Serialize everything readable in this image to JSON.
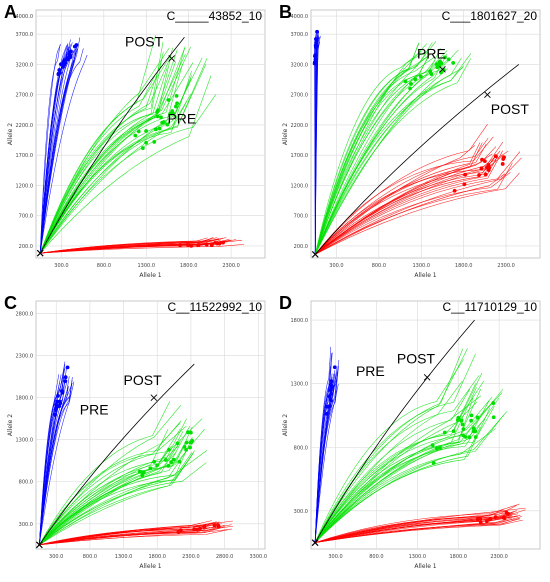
{
  "chart_data": [
    {
      "type": "scatter",
      "panel_letter": "A",
      "title": "C_____43852_10",
      "xlabel": "Allele 1",
      "ylabel": "Allele 2",
      "x_ticks": [
        "300.0",
        "800.0",
        "1300.0",
        "1800.0",
        "2300.0"
      ],
      "y_ticks": [
        "200.0",
        "700.0",
        "1200.0",
        "1700.0",
        "2200.0",
        "2700.0",
        "3200.0",
        "3700.0",
        "4000.0"
      ],
      "xlim": [
        0,
        2700
      ],
      "ylim": [
        0,
        4100
      ],
      "series": [
        {
          "color": "#0000ff",
          "start": [
            50,
            80
          ],
          "end": [
            380,
            3300
          ],
          "n_traces": 24,
          "spread_x": 300,
          "spread_y": 650,
          "tail_x": 40,
          "tail_y": 220,
          "n_dots": 22
        },
        {
          "color": "#00e000",
          "start": [
            50,
            80
          ],
          "end": [
            1500,
            2350
          ],
          "n_traces": 28,
          "spread_x": 700,
          "spread_y": 950,
          "tail_x": 280,
          "tail_y": 900,
          "n_dots": 22
        },
        {
          "color": "#ff0000",
          "start": [
            50,
            80
          ],
          "end": [
            2000,
            230
          ],
          "n_traces": 22,
          "spread_x": 850,
          "spread_y": 90,
          "tail_x": 260,
          "tail_y": 60,
          "n_dots": 14
        }
      ],
      "ntc_line": {
        "color": "#000000",
        "from": [
          50,
          80
        ],
        "to": [
          1750,
          3650
        ]
      },
      "annotations": [
        {
          "text": "POST",
          "at": [
            1600,
            3300
          ],
          "label_at": [
            1050,
            3500
          ],
          "marker": true
        },
        {
          "text": "PRE",
          "at": [
            1520,
            2380
          ],
          "label_at": [
            1550,
            2220
          ],
          "marker": false
        }
      ]
    },
    {
      "type": "scatter",
      "panel_letter": "B",
      "title": "C___1801627_20",
      "xlabel": "Allele 1",
      "ylabel": "Allele 2",
      "x_ticks": [
        "300.0",
        "800.0",
        "1300.0",
        "1800.0",
        "2300.0"
      ],
      "y_ticks": [
        "200.0",
        "700.0",
        "1200.0",
        "1700.0",
        "2200.0",
        "2700.0",
        "3200.0",
        "3700.0",
        "4000.0"
      ],
      "xlim": [
        0,
        2700
      ],
      "ylim": [
        0,
        4100
      ],
      "series": [
        {
          "color": "#0000ff",
          "start": [
            50,
            60
          ],
          "end": [
            60,
            3500
          ],
          "n_traces": 16,
          "spread_x": 40,
          "spread_y": 700,
          "tail_x": 20,
          "tail_y": 200,
          "n_dots": 14
        },
        {
          "color": "#00e000",
          "start": [
            50,
            60
          ],
          "end": [
            1400,
            3050
          ],
          "n_traces": 26,
          "spread_x": 650,
          "spread_y": 550,
          "tail_x": 200,
          "tail_y": 350,
          "n_dots": 20
        },
        {
          "color": "#ff0000",
          "start": [
            50,
            60
          ],
          "end": [
            2000,
            1450
          ],
          "n_traces": 24,
          "spread_x": 700,
          "spread_y": 650,
          "tail_x": 220,
          "tail_y": 350,
          "n_dots": 16
        }
      ],
      "ntc_line": {
        "color": "#000000",
        "from": [
          50,
          60
        ],
        "to": [
          2450,
          3200
        ]
      },
      "annotations": [
        {
          "text": "PRE",
          "at": [
            1550,
            3120
          ],
          "label_at": [
            1250,
            3300
          ],
          "marker": true
        },
        {
          "text": "POST",
          "at": [
            2080,
            2700
          ],
          "label_at": [
            2120,
            2380
          ],
          "marker": true
        }
      ]
    },
    {
      "type": "scatter",
      "panel_letter": "C",
      "title": "C__11522992_10",
      "xlabel": "Allele 1",
      "ylabel": "Allele 2",
      "x_ticks": [
        "300.0",
        "800.0",
        "1300.0",
        "1800.0",
        "2300.0",
        "2800.0",
        "3300.0"
      ],
      "y_ticks": [
        "300.0",
        "800.0",
        "1300.0",
        "1800.0",
        "2300.0",
        "2800.0"
      ],
      "xlim": [
        0,
        3400
      ],
      "ylim": [
        0,
        2950
      ],
      "series": [
        {
          "color": "#0000ff",
          "start": [
            50,
            50
          ],
          "end": [
            380,
            1850
          ],
          "n_traces": 22,
          "spread_x": 280,
          "spread_y": 700,
          "tail_x": 60,
          "tail_y": 250,
          "n_dots": 16
        },
        {
          "color": "#00e000",
          "start": [
            50,
            50
          ],
          "end": [
            1900,
            1050
          ],
          "n_traces": 28,
          "spread_x": 1000,
          "spread_y": 650,
          "tail_x": 400,
          "tail_y": 380,
          "n_dots": 24
        },
        {
          "color": "#ff0000",
          "start": [
            50,
            50
          ],
          "end": [
            2400,
            240
          ],
          "n_traces": 20,
          "spread_x": 900,
          "spread_y": 120,
          "tail_x": 350,
          "tail_y": 60,
          "n_dots": 10
        }
      ],
      "ntc_line": {
        "color": "#000000",
        "from": [
          50,
          50
        ],
        "to": [
          2350,
          2200
        ]
      },
      "annotations": [
        {
          "text": "POST",
          "at": [
            1750,
            1800
          ],
          "label_at": [
            1300,
            1950
          ],
          "marker": true
        },
        {
          "text": "PRE",
          "at": [
            640,
            1640
          ],
          "label_at": [
            650,
            1600
          ],
          "marker": false
        }
      ]
    },
    {
      "type": "scatter",
      "panel_letter": "D",
      "title": "C__11710129_10",
      "xlabel": "Allele 1",
      "ylabel": "Allele 2",
      "x_ticks": [
        "300.0",
        "800.0",
        "1300.0",
        "1800.0",
        "2300.0"
      ],
      "y_ticks": [
        "300.0",
        "800.0",
        "1300.0",
        "1800.0"
      ],
      "xlim": [
        0,
        2800
      ],
      "ylim": [
        0,
        1950
      ],
      "series": [
        {
          "color": "#0000ff",
          "start": [
            50,
            50
          ],
          "end": [
            250,
            1250
          ],
          "n_traces": 18,
          "spread_x": 120,
          "spread_y": 500,
          "tail_x": 40,
          "tail_y": 200,
          "n_dots": 14
        },
        {
          "color": "#00e000",
          "start": [
            50,
            50
          ],
          "end": [
            1800,
            900
          ],
          "n_traces": 28,
          "spread_x": 900,
          "spread_y": 500,
          "tail_x": 350,
          "tail_y": 350,
          "n_dots": 24
        },
        {
          "color": "#ff0000",
          "start": [
            50,
            50
          ],
          "end": [
            2200,
            240
          ],
          "n_traces": 22,
          "spread_x": 800,
          "spread_y": 90,
          "tail_x": 350,
          "tail_y": 60,
          "n_dots": 12
        }
      ],
      "ntc_line": {
        "color": "#000000",
        "from": [
          50,
          50
        ],
        "to": [
          2000,
          1800
        ]
      },
      "annotations": [
        {
          "text": "POST",
          "at": [
            1420,
            1350
          ],
          "label_at": [
            1050,
            1460
          ],
          "marker": true
        },
        {
          "text": "PRE",
          "at": [
            500,
            1380
          ],
          "label_at": [
            550,
            1360
          ],
          "marker": false
        }
      ]
    }
  ]
}
